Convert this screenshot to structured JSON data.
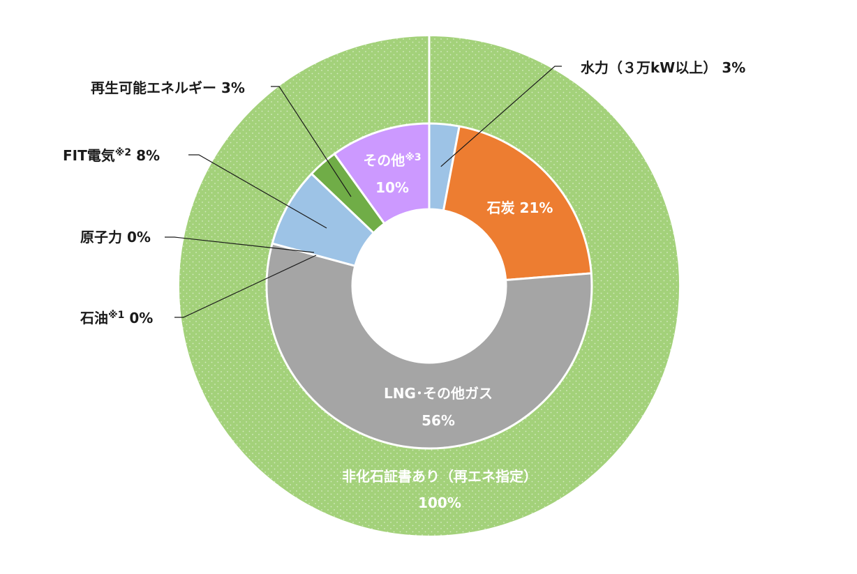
{
  "chart_data": [
    {
      "type": "pie",
      "ring": "outer",
      "slices": [
        {
          "name": "非化石証書あり（再エネ指定）",
          "value": 100,
          "value_label": "100%",
          "color": "#a3d17a"
        }
      ]
    },
    {
      "type": "pie",
      "ring": "inner",
      "slices": [
        {
          "name": "水力（３万kW以上）",
          "value": 3,
          "value_label": "3%",
          "color": "#9dc3e6"
        },
        {
          "name": "石炭",
          "value": 21,
          "value_label": "21%",
          "color": "#ed7d31"
        },
        {
          "name": "LNG･その他ガス",
          "value": 56,
          "value_label": "56%",
          "color": "#a5a5a5"
        },
        {
          "name": "石油",
          "note": "※1",
          "value": 0,
          "value_label": "0%",
          "color": "#000000"
        },
        {
          "name": "原子力",
          "value": 0,
          "value_label": "0%",
          "color": "#ffc000"
        },
        {
          "name": "FIT電気",
          "note": "※2",
          "value": 8,
          "value_label": "8%",
          "color": "#9dc3e6"
        },
        {
          "name": "再生可能エネルギー",
          "value": 3,
          "value_label": "3%",
          "color": "#70ad47"
        },
        {
          "name": "その他",
          "note": "※3",
          "value": 10,
          "value_label": "10%",
          "color": "#cc99ff"
        }
      ]
    }
  ]
}
